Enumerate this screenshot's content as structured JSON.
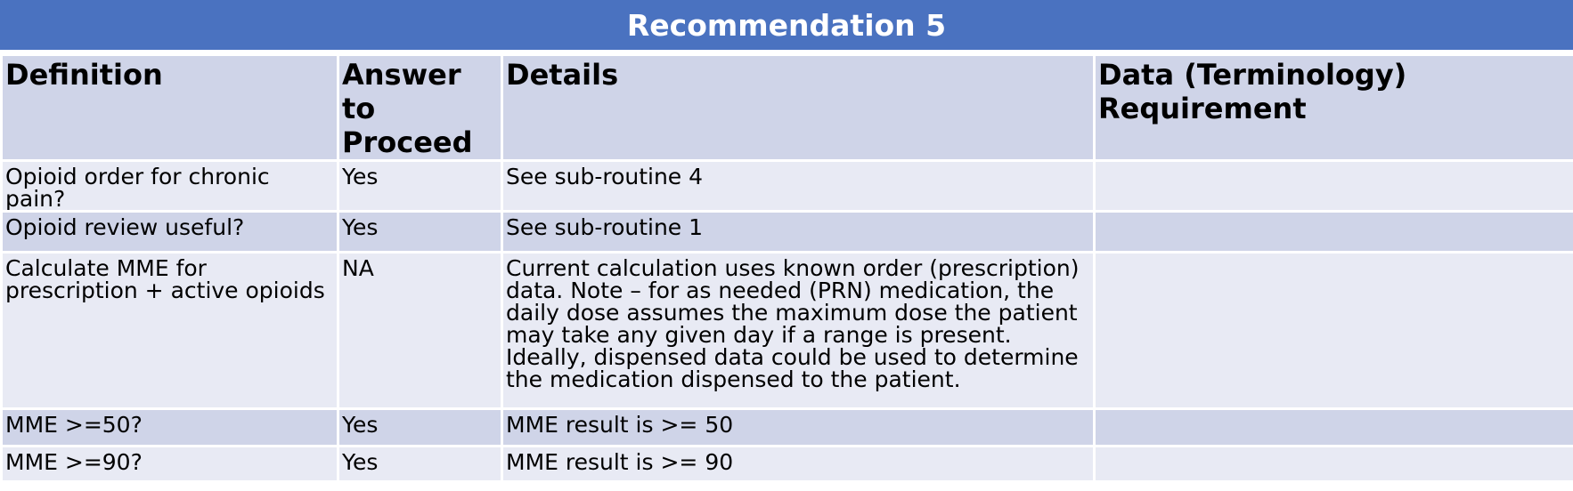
{
  "title": "Recommendation 5",
  "table": {
    "columns": [
      "Definition",
      "Answer to Proceed",
      "Details",
      "Data (Terminology) Requirement"
    ],
    "rows": [
      {
        "definition": "Opioid order for chronic pain?",
        "answer": "Yes",
        "details": "See sub-routine 4"
      },
      {
        "definition": "Opioid review useful?",
        "answer": "Yes",
        "details": "See sub-routine 1"
      },
      {
        "definition": "Calculate MME for prescription + active opioids",
        "answer": "NA",
        "details": "Current calculation uses known order (prescription) data. Note – for as needed (PRN) medication, the daily dose assumes the maximum dose the patient may take any given day if a range is present. Ideally, dispensed data could be used to determine the medication dispensed to the patient."
      },
      {
        "definition": "MME >=50?",
        "answer": "Yes",
        "details": "MME result is >= 50"
      },
      {
        "definition": "MME >=90?",
        "answer": "Yes",
        "details": "MME result is >= 90"
      }
    ]
  }
}
